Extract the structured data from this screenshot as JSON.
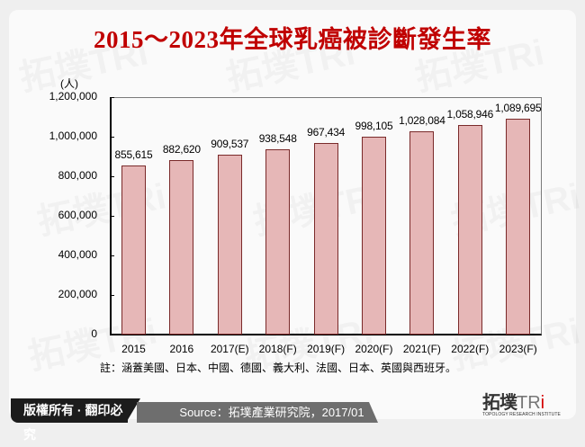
{
  "title": "2015～2023年全球乳癌被診斷發生率",
  "chart_data": {
    "type": "bar",
    "title": "2015～2023年全球乳癌被診斷發生率",
    "xlabel": "",
    "ylabel": "(人)",
    "ylim": [
      0,
      1200000
    ],
    "yticks": [
      "1,200,000",
      "1,000,000",
      "800,000",
      "600,000",
      "400,000",
      "200,000",
      "0"
    ],
    "categories": [
      "2015",
      "2016",
      "2017(E)",
      "2018(F)",
      "2019(F)",
      "2020(F)",
      "2021(F)",
      "2022(F)",
      "2023(F)"
    ],
    "values": [
      855615,
      882620,
      909537,
      938548,
      967434,
      998105,
      1028084,
      1058946,
      1089695
    ],
    "value_labels": [
      "855,615",
      "882,620",
      "909,537",
      "938,548",
      "967,434",
      "998,105",
      "1,028,084",
      "1,058,946",
      "1,089,695"
    ],
    "grid": false,
    "legend": null,
    "bar_color": "#e6b7b7",
    "bar_border_color": "#7a2a2a",
    "note": "註：涵蓋美國、日本、中國、德國、義大利、法國、日本、英國與西班牙。"
  },
  "footer": {
    "copyright": "版權所有 · 翻印必究",
    "source": "Source：拓墣產業研究院，2017/01",
    "logo_cn": "拓墣",
    "logo_en": "TRi",
    "logo_sub": "TOPOLOGY RESEARCH INSTITUTE"
  },
  "colors": {
    "title": "#c00000",
    "footer_dark": "#1c1c1c",
    "footer_gray": "#6e6e6e",
    "logo_dot": "#d40000"
  }
}
